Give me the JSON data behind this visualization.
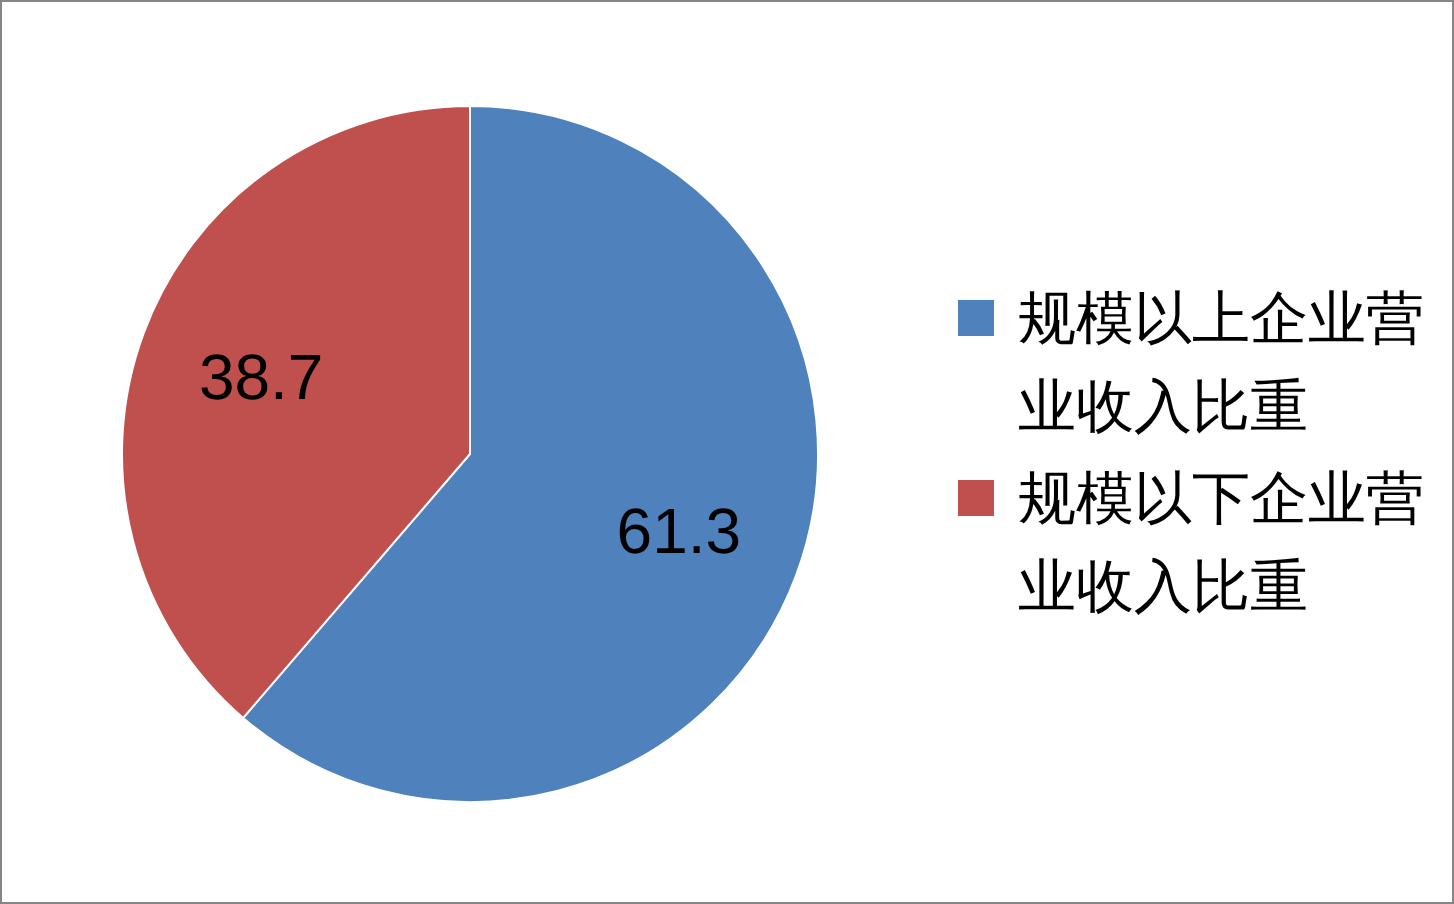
{
  "chart_data": {
    "type": "pie",
    "categories": [
      "规模以上企业营业收入比重",
      "规模以下企业营业收入比重"
    ],
    "values": [
      61.3,
      38.7
    ],
    "colors": [
      "#4f81bd",
      "#c0504d"
    ],
    "data_labels": true,
    "legend": "right"
  }
}
